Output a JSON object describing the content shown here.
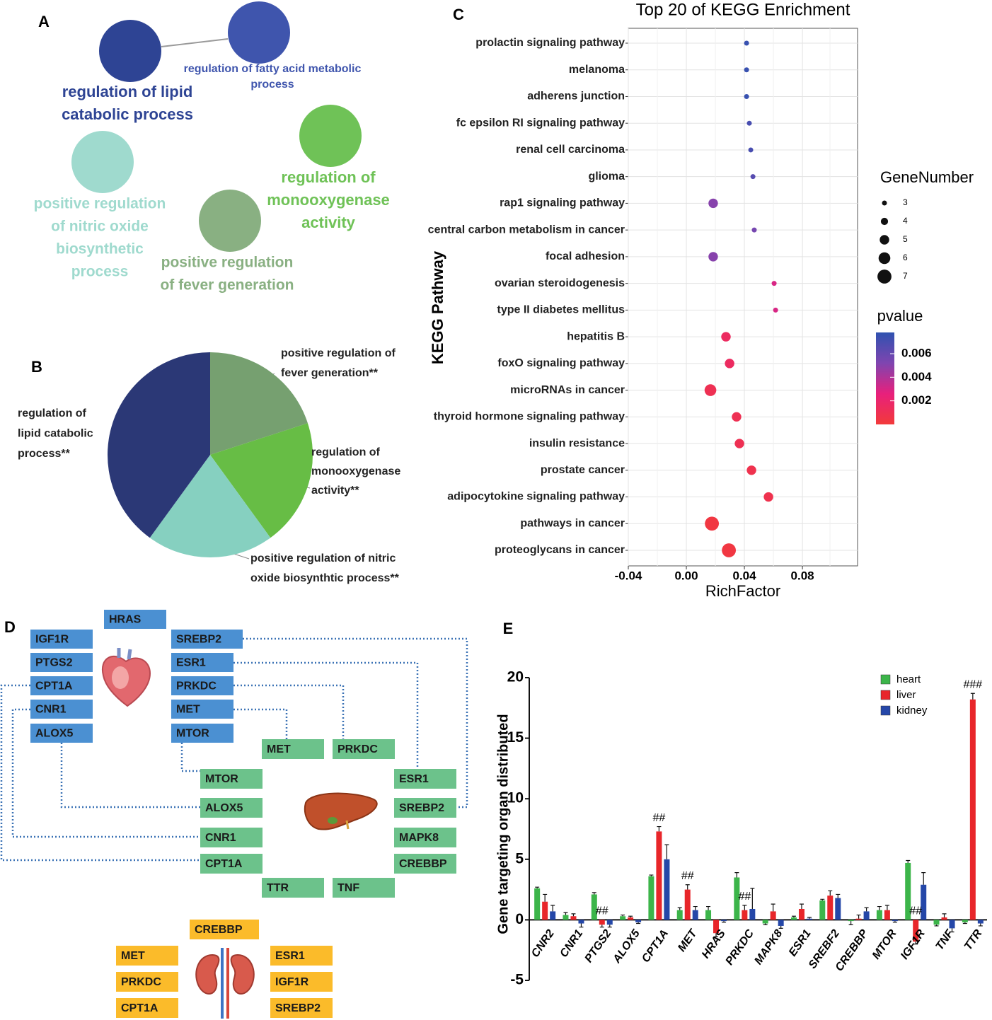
{
  "panel_labels": [
    "A",
    "B",
    "C",
    "D",
    "E"
  ],
  "network": {
    "nodes": [
      {
        "lines": [
          "regulation of lipid",
          "catabolic process"
        ],
        "color": "#2e4494"
      },
      {
        "lines": [
          "regulation of fatty acid metabolic",
          "process"
        ],
        "color": "#3f55ad"
      },
      {
        "lines": [
          "positive regulation",
          "of nitric oxide",
          "biosynthetic",
          "process"
        ],
        "color": "#9fdace"
      },
      {
        "lines": [
          "regulation of",
          "monooxygenase",
          "activity"
        ],
        "color": "#6fc257"
      },
      {
        "lines": [
          "positive regulation",
          "of fever generation"
        ],
        "color": "#89b082"
      }
    ]
  },
  "chart_data": [
    {
      "type": "pie",
      "categories": [
        [
          "positive regulation of",
          "fever generation**"
        ],
        [
          "regulation of",
          "monooxygenase",
          "activity**"
        ],
        [
          "positive regulation of nitric",
          "oxide biosynthtic process**"
        ],
        [
          "regulation of",
          "lipid catabolic",
          "process**"
        ]
      ],
      "values": [
        20,
        20,
        20,
        40
      ],
      "colors": [
        "#76a070",
        "#67bd45",
        "#86d0c0",
        "#2b3876"
      ]
    },
    {
      "type": "scatter",
      "title": "Top 20 of KEGG Enrichment",
      "xlabel": "RichFactor",
      "ylabel": "KEGG Pathway",
      "categories": [
        "prolactin signaling pathway",
        "melanoma",
        "adherens junction",
        "fc epsilon RI signaling pathway",
        "renal cell carcinoma",
        "glioma",
        "rap1 signaling pathway",
        "central carbon metabolism in cancer",
        "focal adhesion",
        "ovarian steroidogenesis",
        "type II diabetes mellitus",
        "hepatitis B",
        "foxO signaling pathway",
        "microRNAs in cancer",
        "thyroid hormone signaling pathway",
        "insulin resistance",
        "prostate cancer",
        "adipocytokine signaling pathway",
        "pathways in cancer",
        "proteoglycans in cancer"
      ],
      "x": [
        0.0415,
        0.0415,
        0.0415,
        0.0434,
        0.0444,
        0.0459,
        0.0185,
        0.0468,
        0.0185,
        0.0605,
        0.0615,
        0.0273,
        0.0298,
        0.0166,
        0.0346,
        0.0366,
        0.0449,
        0.0566,
        0.0176,
        0.0293
      ],
      "size": [
        3,
        3,
        3,
        3,
        3,
        3,
        5,
        3,
        5,
        3,
        3,
        5,
        5,
        6,
        5,
        5,
        5,
        5,
        7,
        7
      ],
      "pvalue": [
        0.0075,
        0.0075,
        0.0075,
        0.007,
        0.007,
        0.0065,
        0.005,
        0.0055,
        0.005,
        0.003,
        0.003,
        0.0015,
        0.0015,
        0.001,
        0.001,
        0.001,
        0.0008,
        0.0008,
        0.0003,
        0.0003
      ],
      "xlim": [
        -0.04,
        0.118
      ],
      "xticks": [
        -0.04,
        {
          "value": 0,
          "label": "0.00"
        },
        0.04,
        0.08
      ],
      "grid": true,
      "size_legend": {
        "title": "GeneNumber",
        "values": [
          3,
          4,
          5,
          6,
          7
        ]
      },
      "color_legend": {
        "title": "pvalue",
        "lim": [
          0,
          0.0078
        ],
        "ticks": [
          0.002,
          0.004,
          0.006
        ],
        "colors": [
          "#f23a3a",
          "#e8207c",
          "#7f45b0",
          "#2f52b0"
        ]
      }
    },
    {
      "type": "bar",
      "ylabel": "Gene targeting organ  distributed",
      "categories": [
        "CNR2",
        "CNR1",
        "PTGS2",
        "ALOX5",
        "CPT1A",
        "MET",
        "HRAS",
        "PRKDC",
        "MAPK8",
        "ESR1",
        "SREBF2",
        "CREBBP",
        "MTOR",
        "IGF1R",
        "TNF",
        "TTR"
      ],
      "series": [
        {
          "name": "heart",
          "color": "#3cb54a",
          "values": [
            2.6,
            0.4,
            2.1,
            0.3,
            3.6,
            0.8,
            0.8,
            3.5,
            -0.3,
            0.2,
            1.6,
            -0.1,
            0.8,
            4.7,
            -0.4,
            -0.2
          ],
          "errors": [
            0.1,
            0.2,
            0.15,
            0.1,
            0.1,
            0.2,
            0.3,
            0.4,
            0.1,
            0.1,
            0.1,
            0.3,
            0.3,
            0.2,
            0.1,
            0.1
          ]
        },
        {
          "name": "liver",
          "color": "#e8262a",
          "values": [
            1.5,
            0.3,
            -0.4,
            0.2,
            7.3,
            2.5,
            -1.1,
            0.8,
            0.7,
            0.9,
            2.0,
            0.1,
            0.8,
            -1.8,
            0.2,
            18.2
          ],
          "errors": [
            0.6,
            0.2,
            0.2,
            0.1,
            0.4,
            0.4,
            0.3,
            0.4,
            0.6,
            0.4,
            0.4,
            0.3,
            0.4,
            0.2,
            0.3,
            0.5
          ]
        },
        {
          "name": "kidney",
          "color": "#2547a8",
          "values": [
            0.7,
            -0.3,
            -0.4,
            -0.2,
            5.0,
            0.8,
            -0.1,
            0.9,
            -0.5,
            0.1,
            1.8,
            0.7,
            -0.1,
            2.9,
            -0.7,
            -0.3
          ],
          "errors": [
            0.5,
            0.3,
            0.2,
            0.1,
            1.2,
            0.3,
            0.1,
            1.7,
            0.2,
            0.1,
            0.3,
            0.3,
            0.1,
            1.0,
            0.3,
            0.2
          ]
        }
      ],
      "ylim": [
        -5,
        20
      ],
      "yticks": [
        -5,
        0,
        5,
        10,
        15,
        20
      ],
      "annotations": [
        {
          "text": "##",
          "category": "PTGS2"
        },
        {
          "text": "##",
          "category": "CPT1A"
        },
        {
          "text": "##",
          "category": "MET"
        },
        {
          "text": "##",
          "category": "PRKDC"
        },
        {
          "text": "##",
          "category": "IGF1R"
        },
        {
          "text": "###",
          "category": "TTR"
        }
      ]
    }
  ],
  "diagram": {
    "heart": {
      "color": "#4b90d2",
      "genes": [
        "HRAS",
        "IGF1R",
        "PTGS2",
        "CPT1A",
        "CNR1",
        "ALOX5",
        "SREBP2",
        "ESR1",
        "PRKDC",
        "MET",
        "MTOR"
      ]
    },
    "liver": {
      "color": "#6cc28b",
      "genes": [
        "MET",
        "PRKDC",
        "MTOR",
        "ESR1",
        "ALOX5",
        "SREBP2",
        "CNR1",
        "MAPK8",
        "CPT1A",
        "CREBBP",
        "TTR",
        "TNF"
      ]
    },
    "kidney": {
      "color": "#fbbb2a",
      "genes": [
        "CREBBP",
        "MET",
        "ESR1",
        "PRKDC",
        "IGF1R",
        "CPT1A",
        "SREBP2"
      ]
    }
  }
}
